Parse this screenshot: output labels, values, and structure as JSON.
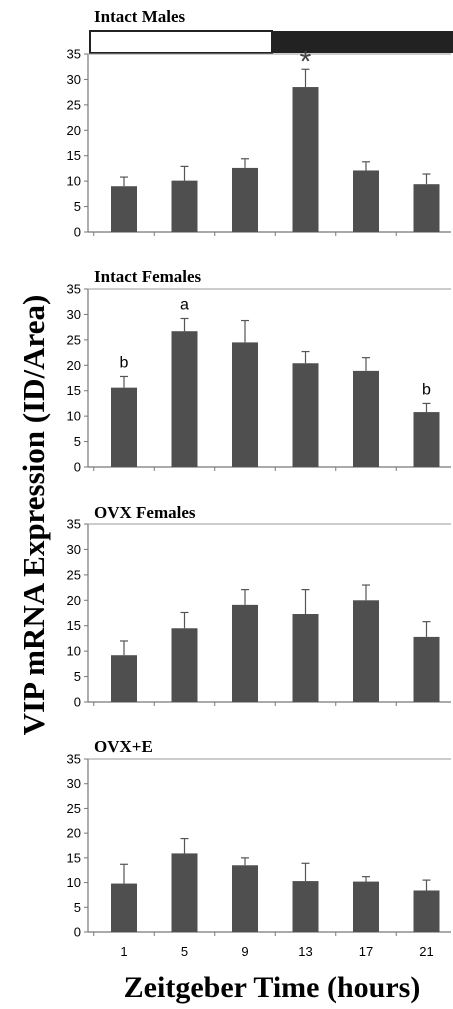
{
  "ylabel": "VIP mRNA Expression (ID/Area)",
  "xlabel": "Zeitgeber Time (hours)",
  "chart_data": [
    {
      "type": "bar",
      "title": "Intact Males",
      "categories": [
        "1",
        "5",
        "9",
        "13",
        "17",
        "21"
      ],
      "values": [
        9.0,
        10.1,
        12.6,
        28.5,
        12.1,
        9.4
      ],
      "errors": [
        1.8,
        2.8,
        1.8,
        3.5,
        1.7,
        2.0
      ],
      "ylim": [
        0,
        35
      ],
      "yticks": [
        0,
        5,
        10,
        15,
        20,
        25,
        30,
        35
      ],
      "annotations": [
        {
          "category": "13",
          "text": "*"
        }
      ],
      "light_dark_bar": {
        "light": "white",
        "dark": "black"
      }
    },
    {
      "type": "bar",
      "title": "Intact Females",
      "categories": [
        "1",
        "5",
        "9",
        "13",
        "17",
        "21"
      ],
      "values": [
        15.6,
        26.7,
        24.5,
        20.4,
        18.9,
        10.8
      ],
      "errors": [
        2.2,
        2.5,
        4.3,
        2.3,
        2.6,
        1.7
      ],
      "ylim": [
        0,
        35
      ],
      "yticks": [
        0,
        5,
        10,
        15,
        20,
        25,
        30,
        35
      ],
      "annotations": [
        {
          "category": "1",
          "text": "b"
        },
        {
          "category": "5",
          "text": "a"
        },
        {
          "category": "21",
          "text": "b"
        }
      ]
    },
    {
      "type": "bar",
      "title": "OVX Females",
      "categories": [
        "1",
        "5",
        "9",
        "13",
        "17",
        "21"
      ],
      "values": [
        9.2,
        14.5,
        19.1,
        17.3,
        20.0,
        12.8
      ],
      "errors": [
        2.8,
        3.1,
        3.0,
        4.8,
        3.0,
        3.0
      ],
      "ylim": [
        0,
        35
      ],
      "yticks": [
        0,
        5,
        10,
        15,
        20,
        25,
        30,
        35
      ],
      "annotations": []
    },
    {
      "type": "bar",
      "title": "OVX+E",
      "categories": [
        "1",
        "5",
        "9",
        "13",
        "17",
        "21"
      ],
      "values": [
        9.8,
        15.9,
        13.5,
        10.3,
        10.2,
        8.4
      ],
      "errors": [
        3.9,
        3.0,
        1.5,
        3.6,
        1.0,
        2.1
      ],
      "ylim": [
        0,
        35
      ],
      "yticks": [
        0,
        5,
        10,
        15,
        20,
        25,
        30,
        35
      ],
      "annotations": []
    }
  ]
}
